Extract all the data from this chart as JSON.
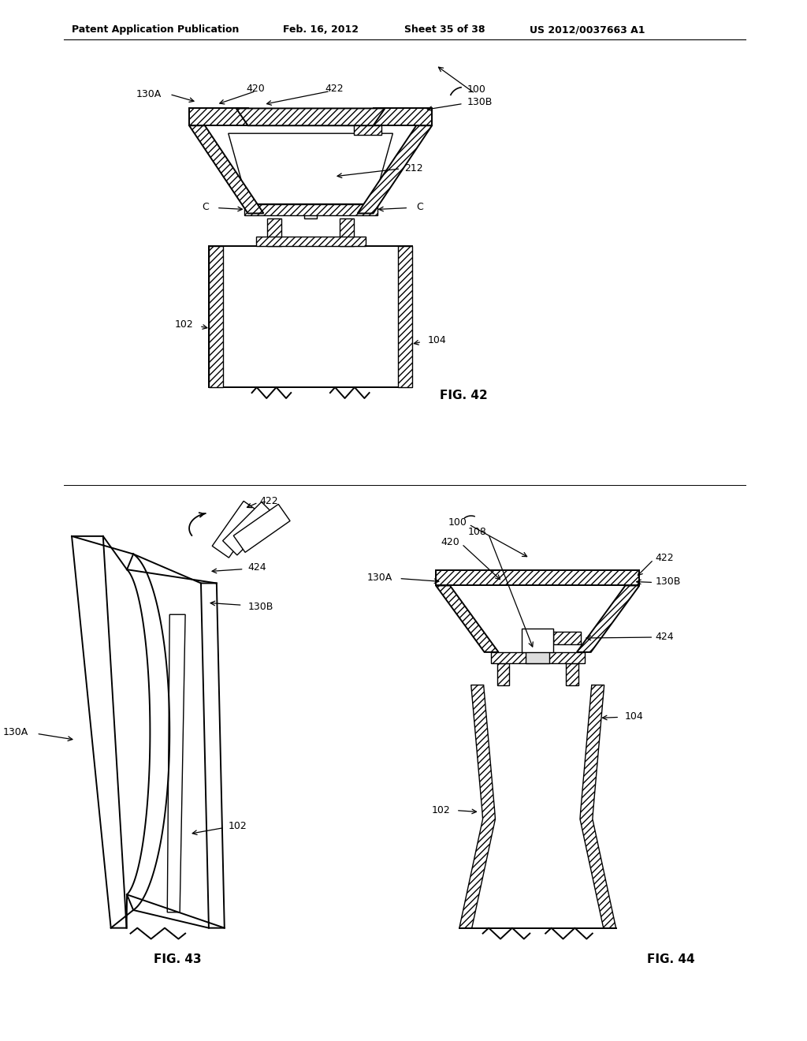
{
  "background_color": "#ffffff",
  "header_text": "Patent Application Publication",
  "header_date": "Feb. 16, 2012",
  "header_sheet": "Sheet 35 of 38",
  "header_patent": "US 2012/0037663 A1",
  "fig42_label": "FIG. 42",
  "fig43_label": "FIG. 43",
  "fig44_label": "FIG. 44"
}
